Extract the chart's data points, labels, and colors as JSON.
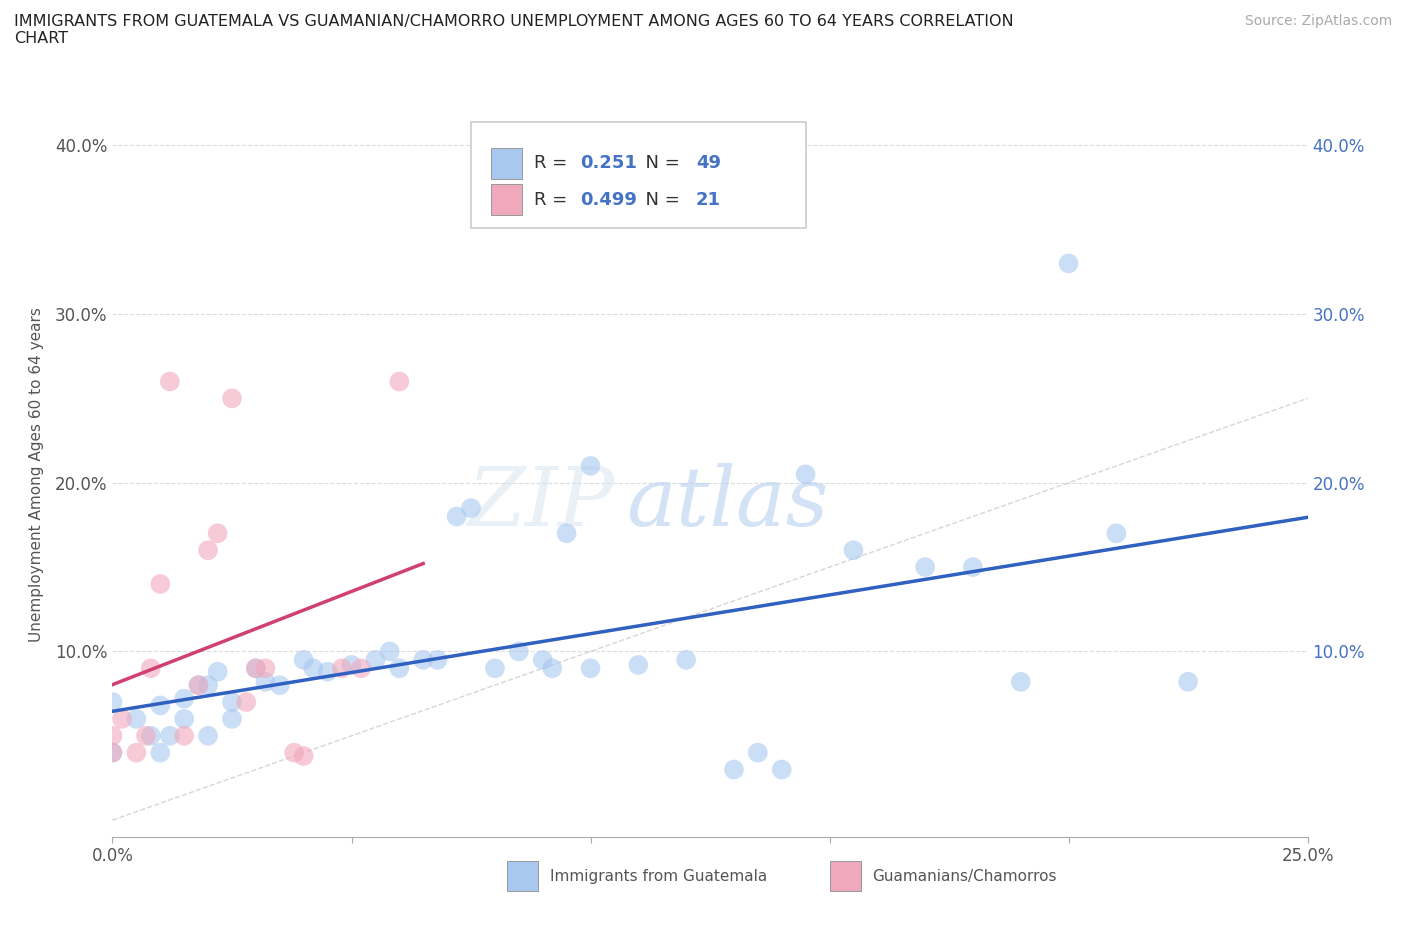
{
  "title": "IMMIGRANTS FROM GUATEMALA VS GUAMANIAN/CHAMORRO UNEMPLOYMENT AMONG AGES 60 TO 64 YEARS CORRELATION\nCHART",
  "source": "Source: ZipAtlas.com",
  "ylabel": "Unemployment Among Ages 60 to 64 years",
  "xlim": [
    0.0,
    0.25
  ],
  "ylim": [
    -0.01,
    0.42
  ],
  "x_tick_positions": [
    0.0,
    0.05,
    0.1,
    0.15,
    0.2,
    0.25
  ],
  "x_tick_labels": [
    "0.0%",
    "",
    "",
    "",
    "",
    "25.0%"
  ],
  "y_tick_positions": [
    0.0,
    0.1,
    0.2,
    0.3,
    0.4
  ],
  "y_tick_labels_left": [
    "",
    "10.0%",
    "20.0%",
    "30.0%",
    "40.0%"
  ],
  "y_tick_labels_right": [
    "",
    "10.0%",
    "20.0%",
    "30.0%",
    "40.0%"
  ],
  "legend_R1": "0.251",
  "legend_N1": "49",
  "legend_R2": "0.499",
  "legend_N2": "21",
  "watermark": "ZIPatlas",
  "blue_color": "#a8c8f0",
  "pink_color": "#f0a8bc",
  "blue_line_color": "#3060c0",
  "pink_line_color": "#d04070",
  "grid_color": "#dddddd",
  "diagonal_color": "#cccccc",
  "scatter_blue": [
    [
      0.0,
      0.07
    ],
    [
      0.0,
      0.04
    ],
    [
      0.005,
      0.06
    ],
    [
      0.008,
      0.05
    ],
    [
      0.01,
      0.04
    ],
    [
      0.01,
      0.068
    ],
    [
      0.012,
      0.05
    ],
    [
      0.015,
      0.072
    ],
    [
      0.015,
      0.06
    ],
    [
      0.018,
      0.08
    ],
    [
      0.02,
      0.05
    ],
    [
      0.02,
      0.08
    ],
    [
      0.022,
      0.088
    ],
    [
      0.025,
      0.07
    ],
    [
      0.025,
      0.06
    ],
    [
      0.03,
      0.09
    ],
    [
      0.032,
      0.082
    ],
    [
      0.035,
      0.08
    ],
    [
      0.04,
      0.095
    ],
    [
      0.042,
      0.09
    ],
    [
      0.045,
      0.088
    ],
    [
      0.05,
      0.092
    ],
    [
      0.055,
      0.095
    ],
    [
      0.058,
      0.1
    ],
    [
      0.06,
      0.09
    ],
    [
      0.065,
      0.095
    ],
    [
      0.068,
      0.095
    ],
    [
      0.072,
      0.18
    ],
    [
      0.075,
      0.185
    ],
    [
      0.08,
      0.09
    ],
    [
      0.085,
      0.1
    ],
    [
      0.09,
      0.095
    ],
    [
      0.092,
      0.09
    ],
    [
      0.095,
      0.17
    ],
    [
      0.1,
      0.09
    ],
    [
      0.1,
      0.21
    ],
    [
      0.11,
      0.092
    ],
    [
      0.12,
      0.095
    ],
    [
      0.13,
      0.03
    ],
    [
      0.135,
      0.04
    ],
    [
      0.14,
      0.03
    ],
    [
      0.145,
      0.205
    ],
    [
      0.155,
      0.16
    ],
    [
      0.17,
      0.15
    ],
    [
      0.18,
      0.15
    ],
    [
      0.19,
      0.082
    ],
    [
      0.2,
      0.33
    ],
    [
      0.21,
      0.17
    ],
    [
      0.225,
      0.082
    ]
  ],
  "scatter_pink": [
    [
      0.0,
      0.05
    ],
    [
      0.0,
      0.04
    ],
    [
      0.002,
      0.06
    ],
    [
      0.005,
      0.04
    ],
    [
      0.007,
      0.05
    ],
    [
      0.008,
      0.09
    ],
    [
      0.01,
      0.14
    ],
    [
      0.012,
      0.26
    ],
    [
      0.015,
      0.05
    ],
    [
      0.018,
      0.08
    ],
    [
      0.02,
      0.16
    ],
    [
      0.022,
      0.17
    ],
    [
      0.025,
      0.25
    ],
    [
      0.028,
      0.07
    ],
    [
      0.03,
      0.09
    ],
    [
      0.032,
      0.09
    ],
    [
      0.038,
      0.04
    ],
    [
      0.04,
      0.038
    ],
    [
      0.048,
      0.09
    ],
    [
      0.052,
      0.09
    ],
    [
      0.06,
      0.26
    ]
  ],
  "bottom_legend_blue_label": "Immigrants from Guatemala",
  "bottom_legend_pink_label": "Guamanians/Chamorros"
}
